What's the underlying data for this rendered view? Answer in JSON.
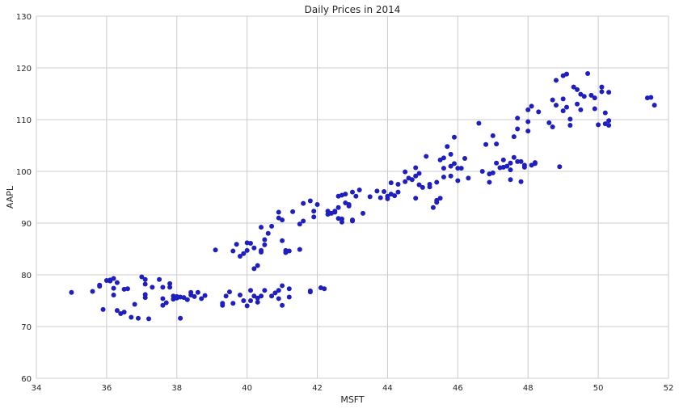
{
  "chart_data": {
    "type": "scatter",
    "title": "Daily Prices in 2014",
    "xlabel": "MSFT",
    "ylabel": "AAPL",
    "xlim": [
      34,
      52
    ],
    "ylim": [
      60,
      130
    ],
    "xticks": [
      34,
      36,
      38,
      40,
      42,
      44,
      46,
      48,
      50,
      52
    ],
    "yticks": [
      60,
      70,
      80,
      90,
      100,
      110,
      120,
      130
    ],
    "grid": true,
    "point_color": "#1f1fbf",
    "points": [
      [
        35.0,
        76.6
      ],
      [
        35.6,
        76.8
      ],
      [
        35.8,
        77.8
      ],
      [
        35.8,
        78.0
      ],
      [
        35.9,
        73.3
      ],
      [
        36.0,
        78.9
      ],
      [
        36.1,
        79.0
      ],
      [
        36.1,
        78.8
      ],
      [
        36.2,
        79.3
      ],
      [
        36.2,
        76.1
      ],
      [
        36.2,
        77.4
      ],
      [
        36.3,
        78.5
      ],
      [
        36.3,
        73.1
      ],
      [
        36.4,
        72.5
      ],
      [
        36.5,
        72.8
      ],
      [
        36.5,
        77.2
      ],
      [
        36.6,
        77.3
      ],
      [
        36.7,
        71.8
      ],
      [
        36.8,
        74.3
      ],
      [
        36.9,
        71.6
      ],
      [
        37.0,
        79.6
      ],
      [
        37.1,
        76.2
      ],
      [
        37.1,
        79.1
      ],
      [
        37.1,
        78.2
      ],
      [
        37.1,
        75.6
      ],
      [
        37.2,
        71.5
      ],
      [
        37.3,
        77.6
      ],
      [
        37.5,
        79.1
      ],
      [
        37.6,
        77.6
      ],
      [
        37.6,
        75.4
      ],
      [
        37.6,
        74.1
      ],
      [
        37.7,
        74.6
      ],
      [
        37.8,
        78.3
      ],
      [
        37.8,
        77.6
      ],
      [
        37.9,
        75.3
      ],
      [
        37.9,
        75.9
      ],
      [
        38.0,
        75.5
      ],
      [
        38.0,
        75.8
      ],
      [
        38.1,
        75.7
      ],
      [
        38.1,
        71.6
      ],
      [
        38.2,
        75.6
      ],
      [
        38.3,
        75.2
      ],
      [
        38.4,
        76.6
      ],
      [
        38.4,
        76.1
      ],
      [
        38.5,
        75.8
      ],
      [
        38.6,
        76.6
      ],
      [
        38.7,
        75.4
      ],
      [
        38.8,
        76.0
      ],
      [
        39.1,
        84.8
      ],
      [
        39.3,
        74.5
      ],
      [
        39.3,
        74.1
      ],
      [
        39.4,
        75.9
      ],
      [
        39.5,
        76.7
      ],
      [
        39.6,
        74.5
      ],
      [
        39.6,
        84.6
      ],
      [
        39.7,
        85.9
      ],
      [
        39.8,
        76.1
      ],
      [
        39.8,
        83.6
      ],
      [
        39.9,
        84.1
      ],
      [
        39.9,
        75.0
      ],
      [
        40.0,
        84.7
      ],
      [
        40.0,
        86.2
      ],
      [
        40.0,
        74.0
      ],
      [
        40.1,
        86.1
      ],
      [
        40.1,
        77.0
      ],
      [
        40.1,
        75.0
      ],
      [
        40.2,
        85.2
      ],
      [
        40.2,
        81.2
      ],
      [
        40.2,
        75.9
      ],
      [
        40.3,
        81.8
      ],
      [
        40.3,
        75.5
      ],
      [
        40.3,
        74.7
      ],
      [
        40.4,
        84.7
      ],
      [
        40.4,
        84.4
      ],
      [
        40.4,
        89.2
      ],
      [
        40.4,
        75.9
      ],
      [
        40.5,
        77.0
      ],
      [
        40.5,
        85.8
      ],
      [
        40.5,
        86.8
      ],
      [
        40.6,
        88.0
      ],
      [
        40.7,
        89.4
      ],
      [
        40.7,
        75.9
      ],
      [
        40.8,
        76.5
      ],
      [
        40.9,
        91.0
      ],
      [
        40.9,
        92.1
      ],
      [
        40.9,
        77.0
      ],
      [
        40.9,
        75.4
      ],
      [
        41.0,
        86.6
      ],
      [
        41.0,
        90.6
      ],
      [
        41.0,
        74.1
      ],
      [
        41.0,
        77.9
      ],
      [
        41.1,
        84.3
      ],
      [
        41.1,
        84.7
      ],
      [
        41.2,
        84.6
      ],
      [
        41.2,
        75.7
      ],
      [
        41.2,
        77.3
      ],
      [
        41.3,
        92.2
      ],
      [
        41.5,
        89.8
      ],
      [
        41.5,
        84.9
      ],
      [
        41.6,
        93.8
      ],
      [
        41.6,
        90.4
      ],
      [
        41.8,
        94.3
      ],
      [
        41.8,
        76.7
      ],
      [
        41.8,
        76.9
      ],
      [
        41.9,
        92.3
      ],
      [
        41.9,
        91.2
      ],
      [
        42.0,
        93.6
      ],
      [
        42.1,
        77.5
      ],
      [
        42.2,
        77.3
      ],
      [
        42.3,
        92.3
      ],
      [
        42.3,
        91.7
      ],
      [
        42.4,
        91.9
      ],
      [
        42.5,
        92.3
      ],
      [
        42.5,
        92.1
      ],
      [
        42.6,
        95.2
      ],
      [
        42.6,
        93.0
      ],
      [
        42.6,
        90.9
      ],
      [
        42.7,
        90.8
      ],
      [
        42.7,
        95.4
      ],
      [
        42.7,
        90.2
      ],
      [
        42.8,
        93.9
      ],
      [
        42.8,
        95.6
      ],
      [
        42.9,
        93.6
      ],
      [
        42.9,
        93.3
      ],
      [
        43.0,
        96.0
      ],
      [
        43.0,
        90.6
      ],
      [
        43.0,
        90.4
      ],
      [
        43.1,
        95.2
      ],
      [
        43.2,
        96.4
      ],
      [
        43.3,
        91.9
      ],
      [
        43.5,
        95.1
      ],
      [
        43.7,
        96.2
      ],
      [
        43.8,
        94.9
      ],
      [
        43.9,
        96.1
      ],
      [
        44.0,
        95.2
      ],
      [
        44.0,
        94.7
      ],
      [
        44.1,
        95.6
      ],
      [
        44.1,
        97.8
      ],
      [
        44.2,
        95.3
      ],
      [
        44.3,
        96.0
      ],
      [
        44.3,
        97.5
      ],
      [
        44.5,
        98.0
      ],
      [
        44.5,
        99.9
      ],
      [
        44.6,
        98.7
      ],
      [
        44.7,
        98.4
      ],
      [
        44.8,
        99.1
      ],
      [
        44.8,
        100.7
      ],
      [
        44.8,
        94.8
      ],
      [
        44.9,
        99.6
      ],
      [
        44.9,
        97.4
      ],
      [
        45.0,
        96.9
      ],
      [
        45.1,
        102.9
      ],
      [
        45.2,
        97.5
      ],
      [
        45.2,
        97.0
      ],
      [
        45.3,
        93.0
      ],
      [
        45.4,
        97.9
      ],
      [
        45.4,
        94.4
      ],
      [
        45.4,
        94.0
      ],
      [
        45.5,
        102.2
      ],
      [
        45.5,
        94.8
      ],
      [
        45.6,
        100.6
      ],
      [
        45.6,
        98.9
      ],
      [
        45.6,
        102.6
      ],
      [
        45.7,
        104.8
      ],
      [
        45.8,
        101.0
      ],
      [
        45.8,
        103.3
      ],
      [
        45.8,
        99.1
      ],
      [
        45.9,
        106.6
      ],
      [
        45.9,
        101.5
      ],
      [
        46.0,
        98.2
      ],
      [
        46.0,
        100.6
      ],
      [
        46.1,
        100.6
      ],
      [
        46.2,
        102.5
      ],
      [
        46.3,
        98.7
      ],
      [
        46.6,
        109.3
      ],
      [
        46.7,
        100.0
      ],
      [
        46.8,
        105.2
      ],
      [
        46.9,
        99.5
      ],
      [
        46.9,
        97.9
      ],
      [
        47.0,
        106.9
      ],
      [
        47.0,
        99.7
      ],
      [
        47.1,
        105.3
      ],
      [
        47.1,
        101.6
      ],
      [
        47.2,
        100.7
      ],
      [
        47.3,
        100.8
      ],
      [
        47.3,
        102.2
      ],
      [
        47.4,
        101.0
      ],
      [
        47.5,
        100.3
      ],
      [
        47.5,
        98.4
      ],
      [
        47.5,
        101.6
      ],
      [
        47.6,
        106.7
      ],
      [
        47.6,
        102.7
      ],
      [
        47.7,
        108.2
      ],
      [
        47.7,
        110.3
      ],
      [
        47.7,
        101.9
      ],
      [
        47.8,
        101.9
      ],
      [
        47.8,
        98.0
      ],
      [
        47.9,
        100.8
      ],
      [
        47.9,
        101.2
      ],
      [
        48.0,
        107.8
      ],
      [
        48.0,
        109.6
      ],
      [
        48.0,
        111.9
      ],
      [
        48.1,
        112.6
      ],
      [
        48.1,
        101.2
      ],
      [
        48.2,
        101.5
      ],
      [
        48.2,
        101.7
      ],
      [
        48.3,
        111.5
      ],
      [
        48.6,
        109.4
      ],
      [
        48.7,
        108.6
      ],
      [
        48.7,
        113.8
      ],
      [
        48.8,
        117.6
      ],
      [
        48.8,
        112.8
      ],
      [
        48.9,
        100.9
      ],
      [
        49.0,
        118.5
      ],
      [
        49.0,
        114.0
      ],
      [
        49.0,
        111.7
      ],
      [
        49.1,
        118.8
      ],
      [
        49.1,
        112.4
      ],
      [
        49.2,
        108.9
      ],
      [
        49.2,
        110.1
      ],
      [
        49.3,
        116.3
      ],
      [
        49.4,
        115.8
      ],
      [
        49.4,
        113.0
      ],
      [
        49.5,
        111.9
      ],
      [
        49.5,
        114.9
      ],
      [
        49.6,
        114.5
      ],
      [
        49.7,
        118.9
      ],
      [
        49.8,
        114.7
      ],
      [
        49.9,
        114.2
      ],
      [
        49.9,
        112.1
      ],
      [
        50.0,
        109.0
      ],
      [
        50.1,
        115.4
      ],
      [
        50.1,
        116.3
      ],
      [
        50.2,
        109.2
      ],
      [
        50.2,
        111.3
      ],
      [
        50.3,
        115.3
      ],
      [
        50.3,
        109.8
      ],
      [
        50.3,
        108.9
      ],
      [
        51.4,
        114.2
      ],
      [
        51.5,
        114.3
      ],
      [
        51.6,
        112.8
      ]
    ]
  }
}
